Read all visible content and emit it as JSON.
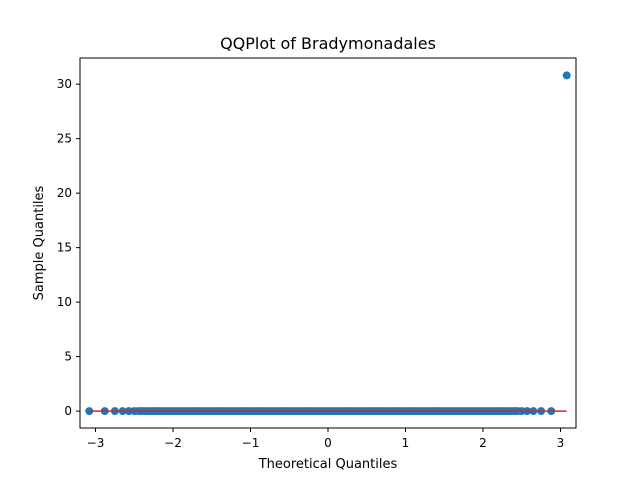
{
  "chart_data": {
    "type": "scatter",
    "title": "QQPlot of Bradymonadales",
    "xlabel": "Theoretical Quantiles",
    "ylabel": "Sample Quantiles",
    "xlim": [
      -3.2,
      3.2
    ],
    "ylim": [
      -1.55,
      32.4
    ],
    "xticks": [
      -3,
      -2,
      -1,
      0,
      1,
      2,
      3
    ],
    "xtick_labels": [
      "−3",
      "−2",
      "−1",
      "0",
      "1",
      "2",
      "3"
    ],
    "yticks": [
      0,
      5,
      10,
      15,
      20,
      25,
      30
    ],
    "ytick_labels": [
      "0",
      "5",
      "10",
      "15",
      "20",
      "25",
      "30"
    ],
    "grid": false,
    "legend": "none",
    "series": [
      {
        "marker_color": "#1f77b4",
        "outlier": {
          "x": 3.08,
          "y": 30.8
        },
        "extreme_points": [
          {
            "x": -3.08,
            "y": 0.0
          },
          {
            "x": -2.88,
            "y": 0.0
          },
          {
            "x": -2.75,
            "y": 0.0
          },
          {
            "x": -2.65,
            "y": 0.0
          },
          {
            "x": -2.57,
            "y": 0.0
          },
          {
            "x": -2.5,
            "y": 0.0
          },
          {
            "x": 2.5,
            "y": 0.0
          },
          {
            "x": 2.57,
            "y": 0.0
          },
          {
            "x": 2.65,
            "y": 0.0
          },
          {
            "x": 2.75,
            "y": 0.0
          },
          {
            "x": 2.88,
            "y": 0.0
          }
        ],
        "dense_band": {
          "x_from": -2.45,
          "x_to": 2.45,
          "y": 0.0
        }
      }
    ],
    "reference_line": {
      "color": "#d62728",
      "x": [
        -3.08,
        3.08
      ],
      "y": [
        0.0,
        0.0
      ]
    }
  }
}
